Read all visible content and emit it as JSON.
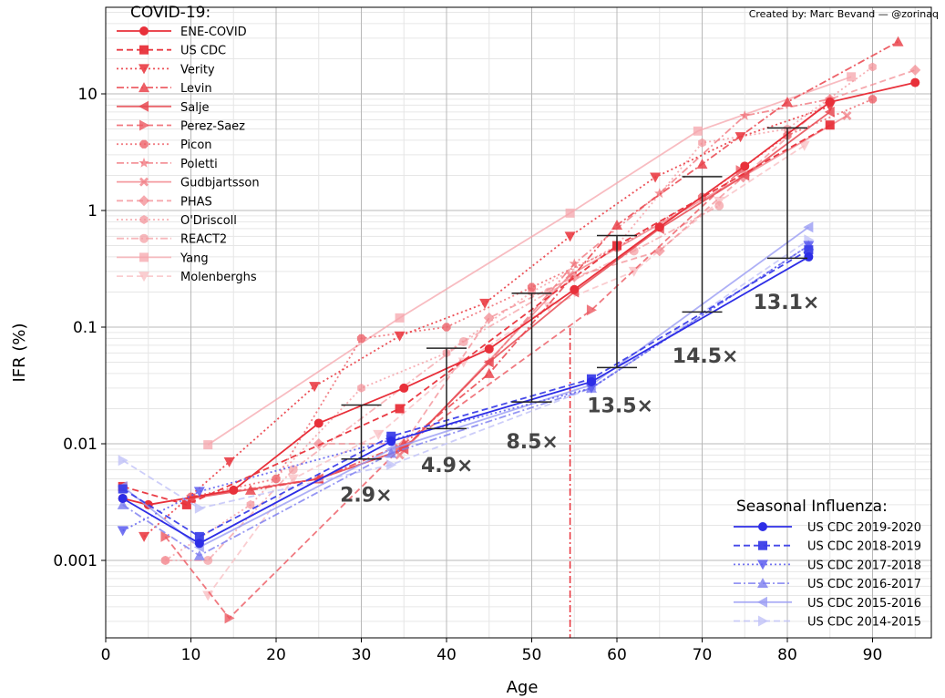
{
  "chart_data": {
    "type": "line",
    "xlabel": "Age",
    "ylabel": "IFR (%)",
    "xlim": [
      0,
      100
    ],
    "ylim": [
      0.0001,
      50
    ],
    "yscale": "log",
    "grid": true,
    "credit": "Created by: Marc Bevand — @zorinaq",
    "x_ticks": [
      "0",
      "10",
      "20",
      "30",
      "40",
      "50",
      "60",
      "70",
      "80",
      "90"
    ],
    "y_ticks": [
      {
        "value": 0.001,
        "label": "0.001"
      },
      {
        "value": 0.01,
        "label": "0.01"
      },
      {
        "value": 0.1,
        "label": "0.1"
      },
      {
        "value": 1,
        "label": "1"
      },
      {
        "value": 10,
        "label": "10"
      }
    ],
    "covid_legend_title": "COVID-19:",
    "flu_legend_title": "Seasonal Influenza:",
    "covid_series": [
      {
        "name": "ENE-COVID",
        "color": "#e8303a",
        "dash": "solid",
        "marker": "circle",
        "opacity": 1.0,
        "x": [
          2,
          5,
          15,
          25,
          35,
          45,
          55,
          65,
          75,
          85,
          95
        ],
        "y": [
          0.0034,
          0.003,
          0.004,
          0.015,
          0.03,
          0.065,
          0.21,
          0.72,
          2.4,
          8.5,
          12.5
        ]
      },
      {
        "name": "US CDC",
        "color": "#e8303a",
        "dash": "dashed",
        "marker": "square",
        "opacity": 0.95,
        "x": [
          2,
          9.5,
          34.5,
          60,
          85
        ],
        "y": [
          0.0043,
          0.003,
          0.02,
          0.5,
          5.4
        ]
      },
      {
        "name": "Verity",
        "color": "#ea3c44",
        "dash": "dotted",
        "marker": "triangle-down",
        "opacity": 0.9,
        "x": [
          4.5,
          14.5,
          24.5,
          34.5,
          44.5,
          54.5,
          64.5,
          74.5,
          85
        ],
        "y": [
          0.0016,
          0.007,
          0.031,
          0.084,
          0.16,
          0.6,
          1.93,
          4.28,
          7.8
        ]
      },
      {
        "name": "Levin",
        "color": "#ea444c",
        "dash": "dashdot",
        "marker": "triangle-up",
        "opacity": 0.85,
        "x": [
          17,
          25,
          35,
          45,
          60,
          70,
          80,
          93
        ],
        "y": [
          0.004,
          0.005,
          0.01,
          0.04,
          0.75,
          2.5,
          8.5,
          28
        ]
      },
      {
        "name": "Salje",
        "color": "#e84a52",
        "dash": "solid",
        "marker": "triangle-left",
        "opacity": 0.85,
        "x": [
          10,
          25,
          35,
          45,
          55,
          65,
          75,
          85
        ],
        "y": [
          0.0034,
          0.005,
          0.009,
          0.05,
          0.2,
          0.7,
          2.0,
          7.0
        ]
      },
      {
        "name": "Perez-Saez",
        "color": "#ec5860",
        "dash": "dashed",
        "marker": "triangle-right",
        "opacity": 0.8,
        "x": [
          7,
          14.5,
          34.5,
          57,
          74.5
        ],
        "y": [
          0.0016,
          0.00032,
          0.009,
          0.14,
          2.2
        ]
      },
      {
        "name": "Picon",
        "color": "#ee6068",
        "dash": "dotted",
        "marker": "octagon",
        "opacity": 0.8,
        "x": [
          10,
          20,
          30,
          40,
          50,
          60,
          70,
          80,
          90
        ],
        "y": [
          0.0035,
          0.005,
          0.08,
          0.1,
          0.22,
          0.48,
          1.3,
          4.4,
          9.0
        ]
      },
      {
        "name": "Poletti",
        "color": "#f07078",
        "dash": "dashdot",
        "marker": "star",
        "opacity": 0.75,
        "x": [
          10,
          25,
          35,
          45,
          55,
          65,
          75,
          85
        ],
        "y": [
          0.0035,
          0.005,
          0.009,
          0.05,
          0.35,
          1.4,
          6.5,
          9.0
        ]
      },
      {
        "name": "Gudbjartsson",
        "color": "#f07880",
        "dash": "solid",
        "marker": "x-filled",
        "opacity": 0.75,
        "x": [
          34.5,
          54.5,
          74.5,
          87
        ],
        "y": [
          0.008,
          0.28,
          1.9,
          6.5
        ]
      },
      {
        "name": "PHAS",
        "color": "#f2848c",
        "dash": "dashed",
        "marker": "diamond",
        "opacity": 0.7,
        "x": [
          25,
          35,
          45,
          55,
          65,
          75,
          85,
          95
        ],
        "y": [
          0.01,
          0.01,
          0.12,
          0.27,
          0.45,
          2.0,
          9.0,
          16
        ]
      },
      {
        "name": "O'Driscoll",
        "color": "#f48e96",
        "dash": "dotted",
        "marker": "hexagon",
        "opacity": 0.7,
        "x": [
          7,
          17,
          30,
          40,
          50,
          60,
          70,
          80,
          90
        ],
        "y": [
          0.001,
          0.003,
          0.03,
          0.06,
          0.2,
          0.5,
          3.8,
          5.0,
          17
        ]
      },
      {
        "name": "REACT2",
        "color": "#f49aa0",
        "dash": "dashdot",
        "marker": "circle",
        "opacity": 0.7,
        "x": [
          7,
          12,
          22,
          42,
          52,
          62,
          72
        ],
        "y": [
          0.001,
          0.001,
          0.006,
          0.075,
          0.2,
          0.45,
          1.1
        ]
      },
      {
        "name": "Yang",
        "color": "#f5a6ac",
        "dash": "solid",
        "marker": "square",
        "opacity": 0.75,
        "x": [
          12,
          34.5,
          54.5,
          69.5,
          87.5
        ],
        "y": [
          0.0098,
          0.12,
          0.95,
          4.8,
          14
        ]
      },
      {
        "name": "Molenberghs",
        "color": "#f8bcc0",
        "dash": "dashed",
        "marker": "triangle-down",
        "opacity": 0.75,
        "x": [
          12,
          22,
          32,
          42,
          52,
          62,
          72,
          82
        ],
        "y": [
          0.0005,
          0.005,
          0.012,
          0.05,
          0.15,
          0.3,
          1.2,
          3.6
        ]
      }
    ],
    "flu_series": [
      {
        "name": "US CDC 2019-2020",
        "color": "#2d2de6",
        "dash": "solid",
        "marker": "circle",
        "opacity": 1.0,
        "x": [
          2,
          11,
          33.5,
          57,
          82.5
        ],
        "y": [
          0.0034,
          0.0014,
          0.0105,
          0.034,
          0.4
        ]
      },
      {
        "name": "US CDC 2018-2019",
        "color": "#3b3ee8",
        "dash": "dashed",
        "marker": "square",
        "opacity": 0.95,
        "x": [
          2,
          11,
          33.5,
          57,
          82.5
        ],
        "y": [
          0.0041,
          0.0016,
          0.0116,
          0.036,
          0.46
        ]
      },
      {
        "name": "US CDC 2017-2018",
        "color": "#5a5cf0",
        "dash": "dotted",
        "marker": "triangle-down",
        "opacity": 0.85,
        "x": [
          2,
          11,
          33.5,
          57,
          82.5
        ],
        "y": [
          0.0018,
          0.0039,
          0.0108,
          0.03,
          0.5
        ]
      },
      {
        "name": "US CDC 2016-2017",
        "color": "#7a7cf0",
        "dash": "dashdot",
        "marker": "triangle-up",
        "opacity": 0.8,
        "x": [
          2,
          11,
          33.5,
          57,
          82.5
        ],
        "y": [
          0.003,
          0.0011,
          0.0083,
          0.03,
          0.5
        ]
      },
      {
        "name": "US CDC 2015-2016",
        "color": "#9a9cf4",
        "dash": "solid",
        "marker": "triangle-left",
        "opacity": 0.8,
        "x": [
          2,
          11,
          33.5,
          57,
          82.5
        ],
        "y": [
          0.0043,
          0.0013,
          0.009,
          0.032,
          0.72
        ]
      },
      {
        "name": "US CDC 2014-2015",
        "color": "#c0c2f8",
        "dash": "dashed",
        "marker": "triangle-right",
        "opacity": 0.8,
        "x": [
          2,
          11,
          33.5,
          57,
          82.5
        ],
        "y": [
          0.0072,
          0.0028,
          0.0066,
          0.03,
          0.56
        ]
      }
    ],
    "ratio_bars": [
      {
        "x": 30,
        "low": 0.0074,
        "high": 0.0215,
        "label": "2.9×",
        "label_x": 27.5,
        "label_y": 0.0037
      },
      {
        "x": 40,
        "low": 0.0135,
        "high": 0.066,
        "label": "4.9×",
        "label_x": 37,
        "label_y": 0.0066
      },
      {
        "x": 50,
        "low": 0.0228,
        "high": 0.195,
        "label": "8.5×",
        "label_x": 47,
        "label_y": 0.0106
      },
      {
        "x": 60,
        "low": 0.045,
        "high": 0.61,
        "label": "13.5×",
        "label_x": 56.5,
        "label_y": 0.0215
      },
      {
        "x": 70,
        "low": 0.135,
        "high": 1.95,
        "label": "14.5×",
        "label_x": 66.5,
        "label_y": 0.057
      },
      {
        "x": 80,
        "low": 0.39,
        "high": 5.1,
        "label": "13.1×",
        "label_x": 76,
        "label_y": 0.165
      }
    ],
    "vline": {
      "x": 54.5,
      "color": "#e8303a"
    }
  }
}
